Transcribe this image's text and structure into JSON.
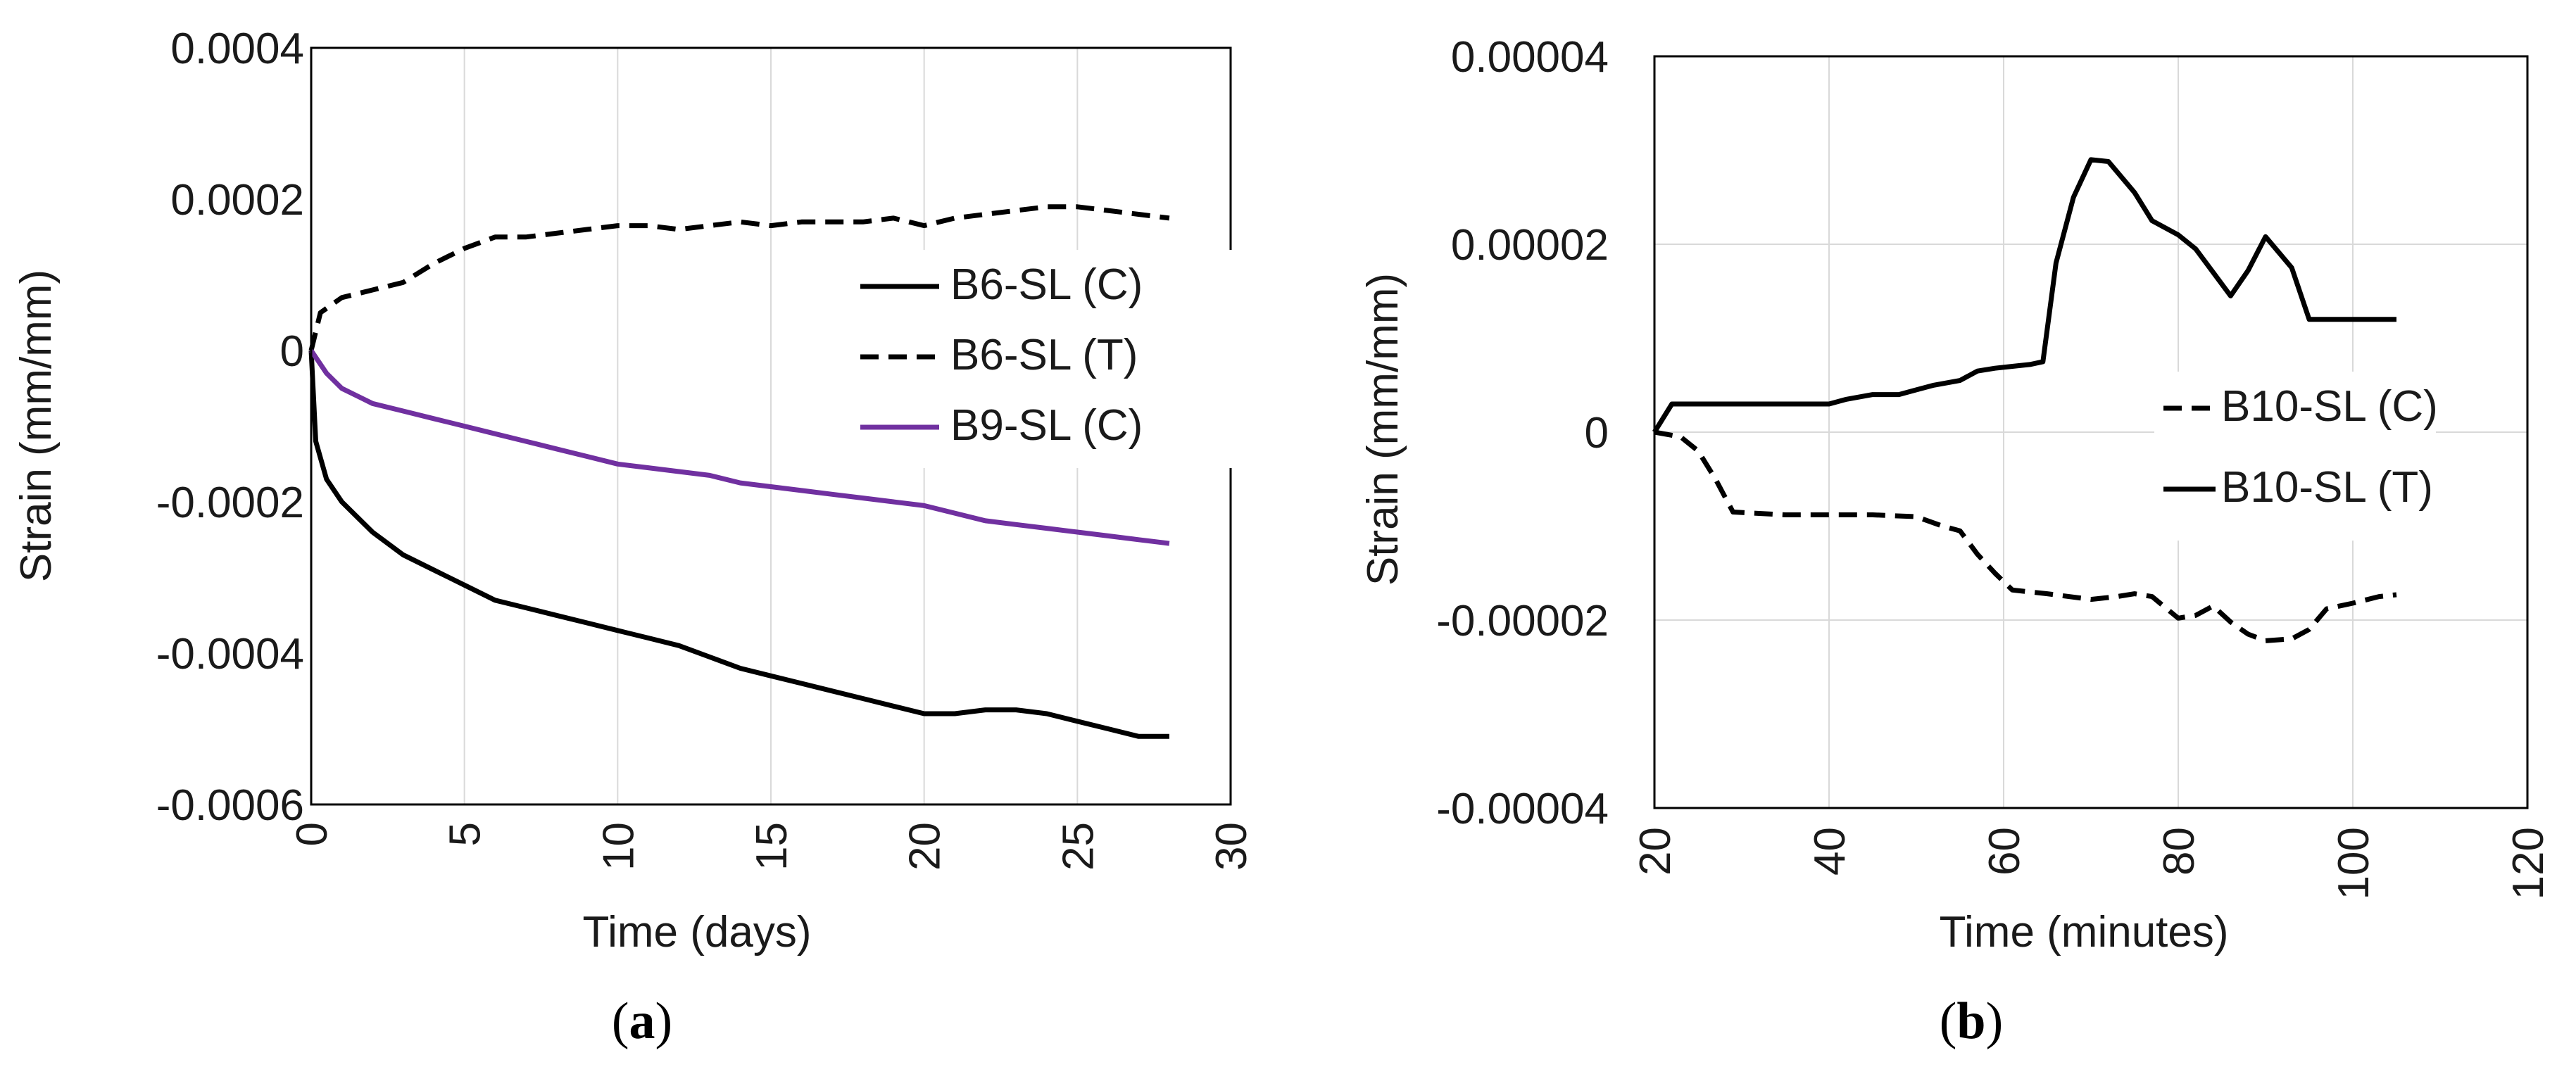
{
  "chart_data": [
    {
      "type": "line",
      "panel_label": "a",
      "xlabel": "Time (days)",
      "ylabel": "Strain (mm/mm)",
      "xlim": [
        0,
        30
      ],
      "ylim": [
        -0.0006,
        0.0004
      ],
      "x_ticks": [
        0,
        5,
        10,
        15,
        20,
        25,
        30
      ],
      "y_ticks": [
        0.0004,
        0.0002,
        0,
        -0.0002,
        -0.0004,
        -0.0006
      ],
      "x_tick_labels": [
        "0",
        "5",
        "10",
        "15",
        "20",
        "25",
        "30"
      ],
      "y_tick_labels": [
        "0.0004",
        "0.0002",
        "0",
        "-0.0002",
        "-0.0004",
        "-0.0006"
      ],
      "grid": "vertical",
      "legend_position": "right",
      "series": [
        {
          "name": "B6-SL (C)",
          "color": "#000000",
          "dash": "solid",
          "x": [
            0,
            0.15,
            0.5,
            1,
            2,
            3,
            4,
            5,
            6,
            7,
            8,
            9,
            10,
            11,
            12,
            13,
            14,
            15,
            16,
            17,
            18,
            19,
            20,
            21,
            22,
            23,
            24,
            25,
            26,
            27,
            28
          ],
          "y": [
            0,
            -0.00012,
            -0.00017,
            -0.0002,
            -0.00024,
            -0.00027,
            -0.00029,
            -0.00031,
            -0.00033,
            -0.00034,
            -0.00035,
            -0.00036,
            -0.00037,
            -0.00038,
            -0.00039,
            -0.000405,
            -0.00042,
            -0.00043,
            -0.00044,
            -0.00045,
            -0.00046,
            -0.00047,
            -0.00048,
            -0.00048,
            -0.000475,
            -0.000475,
            -0.00048,
            -0.00049,
            -0.0005,
            -0.00051,
            -0.00051
          ]
        },
        {
          "name": "B6-SL (T)",
          "color": "#000000",
          "dash": "dashed",
          "x": [
            0,
            0.3,
            1,
            2,
            3,
            4,
            5,
            6,
            7,
            8,
            9,
            10,
            11,
            12,
            13,
            14,
            15,
            16,
            17,
            18,
            19,
            20,
            21,
            22,
            23,
            24,
            25,
            26,
            27,
            28
          ],
          "y": [
            0,
            5e-05,
            7e-05,
            8e-05,
            9e-05,
            0.000115,
            0.000135,
            0.00015,
            0.00015,
            0.000155,
            0.00016,
            0.000165,
            0.000165,
            0.00016,
            0.000165,
            0.00017,
            0.000165,
            0.00017,
            0.00017,
            0.00017,
            0.000175,
            0.000165,
            0.000175,
            0.00018,
            0.000185,
            0.00019,
            0.00019,
            0.000185,
            0.00018,
            0.000175
          ]
        },
        {
          "name": "B9-SL (C)",
          "color": "#7030a0",
          "dash": "solid",
          "x": [
            0,
            0.5,
            1,
            2,
            3,
            4,
            5,
            6,
            7,
            8,
            9,
            10,
            11,
            12,
            13,
            14,
            15,
            16,
            17,
            18,
            19,
            20,
            21,
            22,
            23,
            24,
            25,
            26,
            27,
            28
          ],
          "y": [
            0,
            -3e-05,
            -5e-05,
            -7e-05,
            -8e-05,
            -9e-05,
            -0.0001,
            -0.00011,
            -0.00012,
            -0.00013,
            -0.00014,
            -0.00015,
            -0.000155,
            -0.00016,
            -0.000165,
            -0.000175,
            -0.00018,
            -0.000185,
            -0.00019,
            -0.000195,
            -0.0002,
            -0.000205,
            -0.000215,
            -0.000225,
            -0.00023,
            -0.000235,
            -0.00024,
            -0.000245,
            -0.00025,
            -0.000255
          ]
        }
      ]
    },
    {
      "type": "line",
      "panel_label": "b",
      "xlabel": "Time (minutes)",
      "ylabel": "Strain (mm/mm)",
      "xlim": [
        20,
        120
      ],
      "ylim": [
        -4e-05,
        4e-05
      ],
      "x_ticks": [
        20,
        40,
        60,
        80,
        100,
        120
      ],
      "y_ticks": [
        4e-05,
        2e-05,
        0,
        -2e-05,
        -4e-05
      ],
      "x_tick_labels": [
        "20",
        "40",
        "60",
        "80",
        "100",
        "120"
      ],
      "y_tick_labels": [
        "0.00004",
        "0.00002",
        "0",
        "-0.00002",
        "-0.00004"
      ],
      "grid": "both",
      "legend_position": "right",
      "series": [
        {
          "name": "B10-SL (C)",
          "color": "#000000",
          "dash": "dashed",
          "x": [
            20,
            23,
            25,
            27,
            29,
            35,
            40,
            45,
            50,
            53,
            55,
            57,
            59,
            61,
            65,
            70,
            73,
            75,
            77,
            80,
            82,
            84,
            86,
            88,
            90,
            93,
            95,
            97,
            100,
            103,
            105
          ],
          "y": [
            0,
            -5e-07,
            -2e-06,
            -5e-06,
            -8.5e-06,
            -8.8e-06,
            -8.8e-06,
            -8.8e-06,
            -9e-06,
            -1e-05,
            -1.05e-05,
            -1.3e-05,
            -1.5e-05,
            -1.68e-05,
            -1.72e-05,
            -1.78e-05,
            -1.75e-05,
            -1.72e-05,
            -1.75e-05,
            -1.98e-05,
            -1.95e-05,
            -1.85e-05,
            -2.02e-05,
            -2.15e-05,
            -2.22e-05,
            -2.2e-05,
            -2.1e-05,
            -1.88e-05,
            -1.82e-05,
            -1.75e-05,
            -1.73e-05
          ]
        },
        {
          "name": "B10-SL (T)",
          "color": "#000000",
          "dash": "solid",
          "x": [
            20,
            22,
            25,
            30,
            35,
            40,
            42,
            45,
            48,
            50,
            52,
            55,
            57,
            59,
            61,
            63,
            64.5,
            66,
            68,
            70,
            72,
            75,
            77,
            80,
            82,
            84,
            86,
            88,
            90,
            93,
            95,
            97,
            100,
            102,
            105
          ],
          "y": [
            0,
            3e-06,
            3e-06,
            3e-06,
            3e-06,
            3e-06,
            3.5e-06,
            4e-06,
            4e-06,
            4.5e-06,
            5e-06,
            5.5e-06,
            6.5e-06,
            6.8e-06,
            7e-06,
            7.2e-06,
            7.5e-06,
            1.8e-05,
            2.5e-05,
            2.9e-05,
            2.88e-05,
            2.55e-05,
            2.25e-05,
            2.1e-05,
            1.95e-05,
            1.7e-05,
            1.45e-05,
            1.72e-05,
            2.08e-05,
            1.75e-05,
            1.2e-05,
            1.2e-05,
            1.2e-05,
            1.2e-05,
            1.2e-05
          ]
        }
      ]
    }
  ]
}
